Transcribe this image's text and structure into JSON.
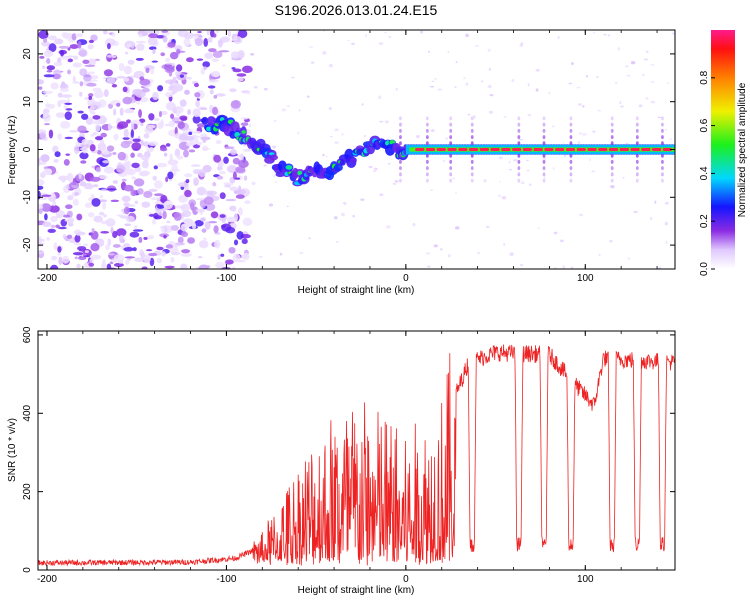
{
  "figure_title": "S196.2026.013.01.24.E15",
  "colors": {
    "trace": "#ee2222",
    "axis": "#000000",
    "background": "#ffffff"
  },
  "colorbar": {
    "label": "Normalized spectral amplitude",
    "ticks": [
      "0.0",
      "0.2",
      "0.4",
      "0.6",
      "0.8"
    ],
    "tick_values": [
      0.0,
      0.2,
      0.4,
      0.6,
      0.8
    ],
    "range": [
      0,
      1
    ]
  },
  "chart_data": [
    {
      "type": "heatmap",
      "title": "",
      "xlabel": "Height of straight line (km)",
      "ylabel": "Frequency (Hz)",
      "xlim": [
        -205,
        150
      ],
      "ylim": [
        -25,
        25
      ],
      "xticks": [
        -200,
        -100,
        0,
        100
      ],
      "xtick_labels": [
        "-200",
        "-100",
        "0",
        "100"
      ],
      "yticks": [
        -20,
        -10,
        0,
        10,
        20
      ],
      "ytick_labels": [
        "-20",
        "-10",
        "0",
        "10",
        "20"
      ],
      "description_values": {
        "noise_region_x": [
          -205,
          -88
        ],
        "ridge_track": [
          {
            "x": -110,
            "f": 5.5
          },
          {
            "x": -100,
            "f": 5
          },
          {
            "x": -90,
            "f": 3
          },
          {
            "x": -80,
            "f": 0
          },
          {
            "x": -70,
            "f": -4
          },
          {
            "x": -60,
            "f": -6
          },
          {
            "x": -50,
            "f": -5
          },
          {
            "x": -40,
            "f": -4
          },
          {
            "x": -30,
            "f": -2
          },
          {
            "x": -20,
            "f": 1
          },
          {
            "x": -12,
            "f": 2
          },
          {
            "x": -5,
            "f": -0.5
          },
          {
            "x": 0,
            "f": 0.5
          },
          {
            "x": 150,
            "f": 0
          }
        ],
        "steady_tone_hz": 0,
        "steady_tone_x": [
          0,
          150
        ]
      }
    },
    {
      "type": "line",
      "title": "",
      "xlabel": "Height of straight line (km)",
      "ylabel": "SNR (10 * v/v)",
      "xlim": [
        -205,
        150
      ],
      "ylim": [
        0,
        610
      ],
      "xticks": [
        -200,
        -100,
        0,
        100
      ],
      "xtick_labels": [
        "-200",
        "-100",
        "0",
        "100"
      ],
      "yticks": [
        0,
        200,
        400,
        600
      ],
      "ytick_labels": [
        "0",
        "200",
        "400",
        "600"
      ],
      "series": [
        {
          "name": "SNR",
          "envelope": [
            {
              "x": -205,
              "y": 18
            },
            {
              "x": -120,
              "y": 20
            },
            {
              "x": -95,
              "y": 30
            },
            {
              "x": -80,
              "y": 60
            },
            {
              "x": -70,
              "y": 120
            },
            {
              "x": -60,
              "y": 200
            },
            {
              "x": -50,
              "y": 260
            },
            {
              "x": -40,
              "y": 300
            },
            {
              "x": -30,
              "y": 320
            },
            {
              "x": -20,
              "y": 310
            },
            {
              "x": -10,
              "y": 290
            },
            {
              "x": 0,
              "y": 240
            },
            {
              "x": 10,
              "y": 280
            },
            {
              "x": 20,
              "y": 330
            },
            {
              "x": 28,
              "y": 450
            },
            {
              "x": 35,
              "y": 530
            },
            {
              "x": 50,
              "y": 555
            },
            {
              "x": 80,
              "y": 550
            },
            {
              "x": 95,
              "y": 470
            },
            {
              "x": 105,
              "y": 420
            },
            {
              "x": 110,
              "y": 540
            },
            {
              "x": 150,
              "y": 530
            }
          ],
          "dips_x": [
            -3,
            12,
            25,
            37,
            63,
            77,
            92,
            115,
            129,
            143
          ],
          "dip_level": 45
        }
      ]
    }
  ]
}
